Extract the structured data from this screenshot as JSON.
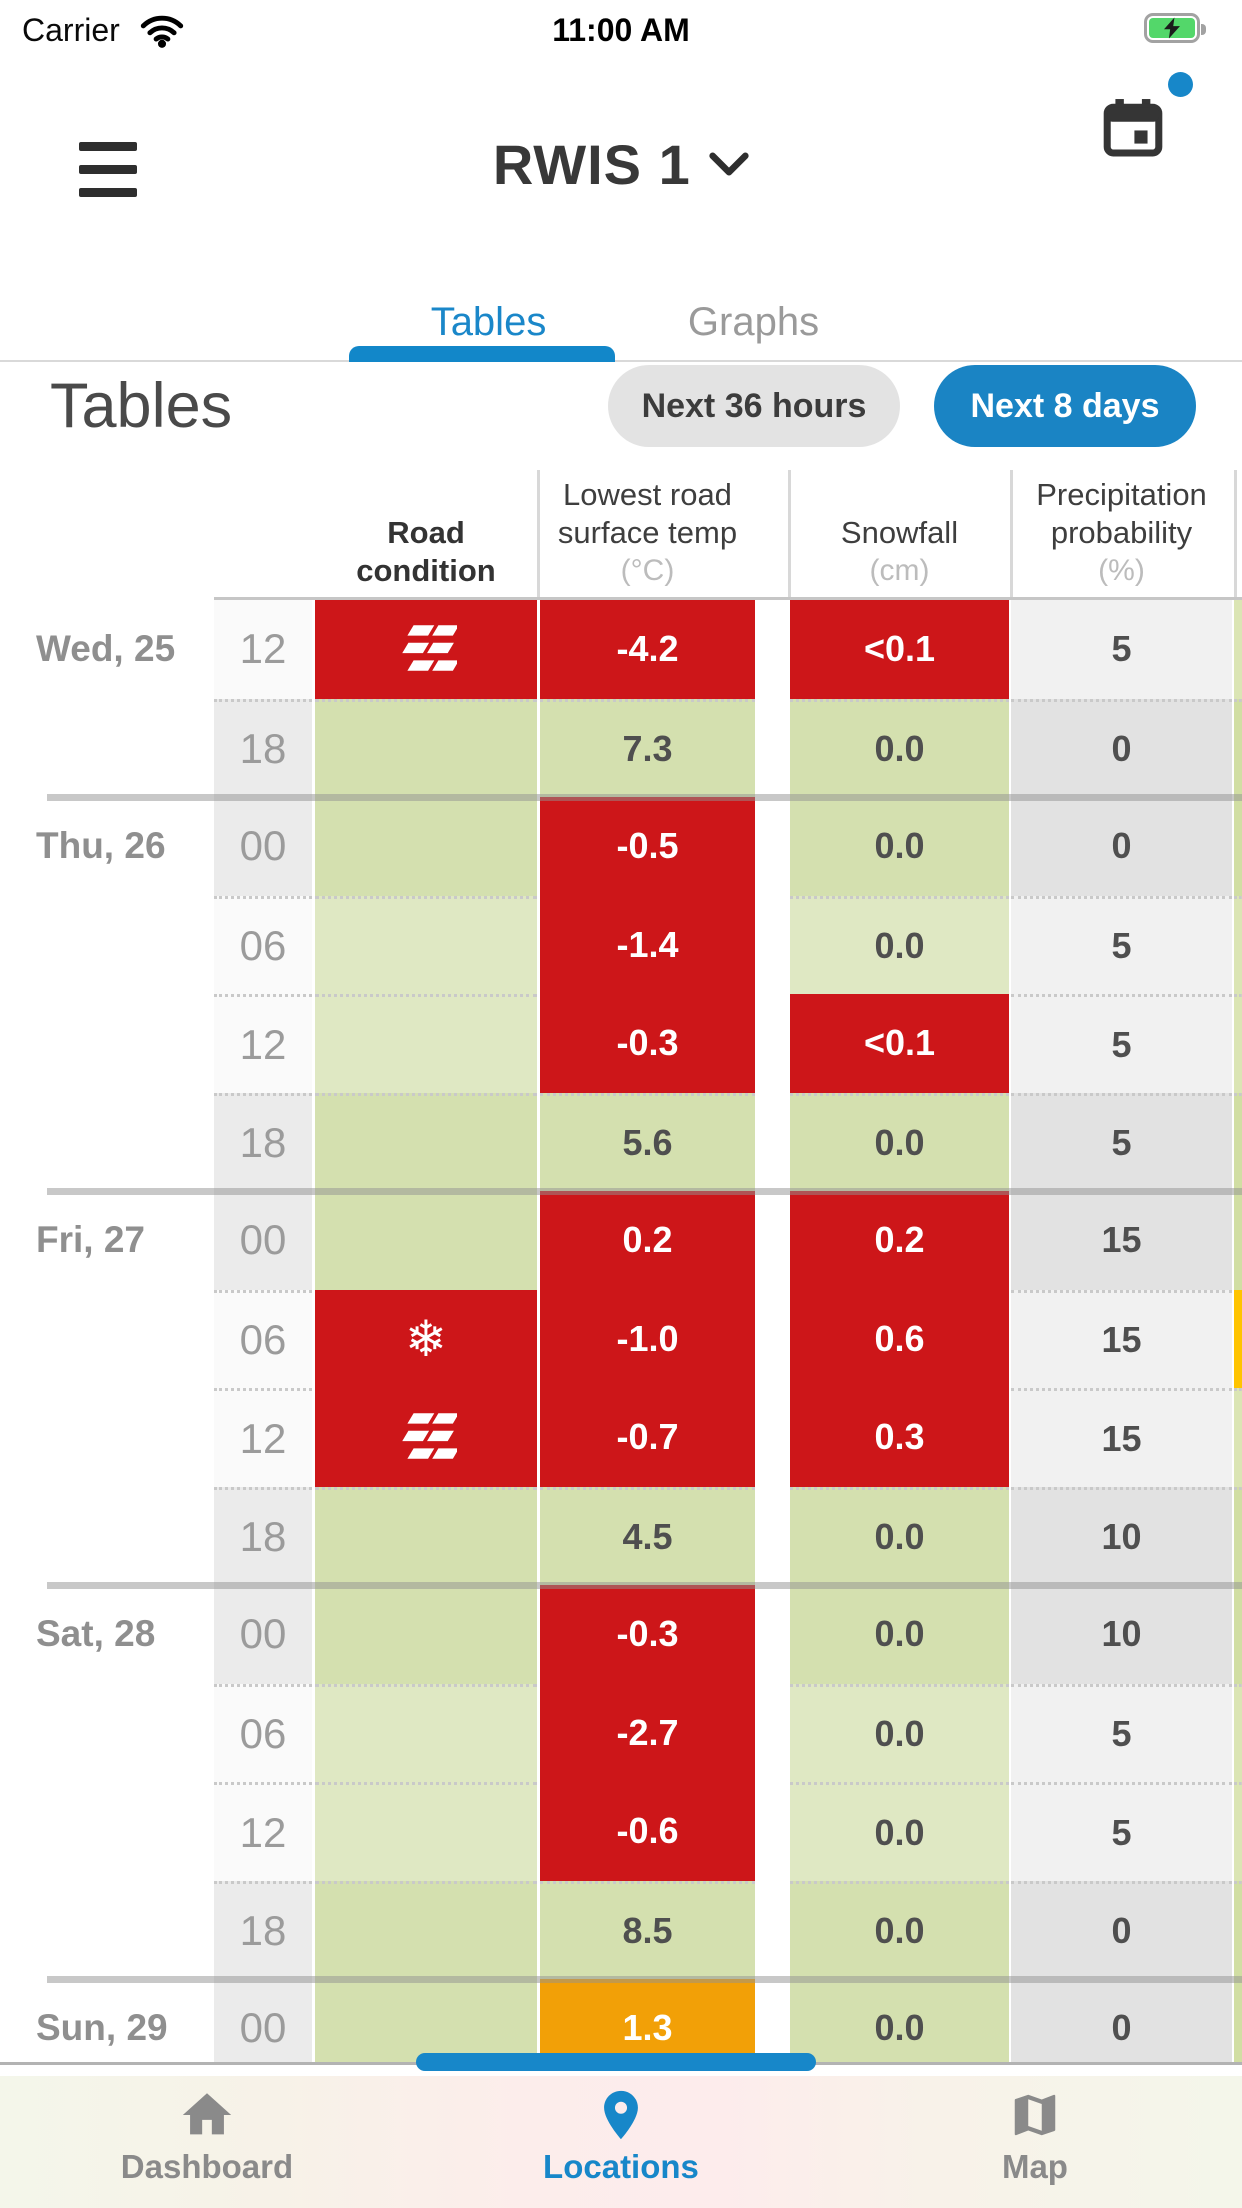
{
  "colors": {
    "accent_blue": "#1787c9",
    "alert_red": "#cd1619",
    "warn_orange": "#f2a007",
    "ok_green": "#dfe8c3",
    "edge_gold": "#ffc400"
  },
  "status_bar": {
    "carrier": "Carrier",
    "time": "11:00 AM",
    "battery": "charging"
  },
  "header": {
    "title": "RWIS 1"
  },
  "tabs": [
    {
      "label": "Tables",
      "active": true
    },
    {
      "label": "Graphs",
      "active": false
    }
  ],
  "section": {
    "title": "Tables",
    "buttons": [
      {
        "label": "Next 36 hours",
        "active": false
      },
      {
        "label": "Next 8 days",
        "active": true
      }
    ]
  },
  "table": {
    "columns": [
      {
        "label": "Road condition",
        "lines": [
          "Road",
          "condition"
        ],
        "unit": ""
      },
      {
        "label": "Lowest road surface temp",
        "lines": [
          "Lowest road",
          "surface temp"
        ],
        "unit": "(°C)"
      },
      {
        "label": "Snowfall",
        "lines": [
          "Snowfall"
        ],
        "unit": "(cm)"
      },
      {
        "label": "Precipitation probability",
        "lines": [
          "Precipitation",
          "probability"
        ],
        "unit": "(%)"
      }
    ],
    "days": [
      {
        "label": "Wed, 25",
        "rows": [
          {
            "time": "12",
            "road": {
              "icon": "slippery",
              "s": "red"
            },
            "temp": {
              "v": "-4.2",
              "s": "red"
            },
            "snow": {
              "v": "<0.1",
              "s": "red"
            },
            "precip": "5",
            "edge": "green"
          },
          {
            "time": "18",
            "road": {
              "icon": null,
              "s": "green"
            },
            "temp": {
              "v": "7.3",
              "s": "green"
            },
            "snow": {
              "v": "0.0",
              "s": "green"
            },
            "precip": "0",
            "edge": "green"
          }
        ]
      },
      {
        "label": "Thu, 26",
        "rows": [
          {
            "time": "00",
            "road": {
              "icon": null,
              "s": "green"
            },
            "temp": {
              "v": "-0.5",
              "s": "red"
            },
            "snow": {
              "v": "0.0",
              "s": "green"
            },
            "precip": "0",
            "edge": "green"
          },
          {
            "time": "06",
            "road": {
              "icon": null,
              "s": "green"
            },
            "temp": {
              "v": "-1.4",
              "s": "red"
            },
            "snow": {
              "v": "0.0",
              "s": "green"
            },
            "precip": "5",
            "edge": "green"
          },
          {
            "time": "12",
            "road": {
              "icon": null,
              "s": "green"
            },
            "temp": {
              "v": "-0.3",
              "s": "red"
            },
            "snow": {
              "v": "<0.1",
              "s": "red"
            },
            "precip": "5",
            "edge": "green"
          },
          {
            "time": "18",
            "road": {
              "icon": null,
              "s": "green"
            },
            "temp": {
              "v": "5.6",
              "s": "green"
            },
            "snow": {
              "v": "0.0",
              "s": "green"
            },
            "precip": "5",
            "edge": "green"
          }
        ]
      },
      {
        "label": "Fri, 27",
        "rows": [
          {
            "time": "00",
            "road": {
              "icon": null,
              "s": "green"
            },
            "temp": {
              "v": "0.2",
              "s": "red"
            },
            "snow": {
              "v": "0.2",
              "s": "red"
            },
            "precip": "15",
            "edge": "green"
          },
          {
            "time": "06",
            "road": {
              "icon": "snowflake",
              "s": "red"
            },
            "temp": {
              "v": "-1.0",
              "s": "red"
            },
            "snow": {
              "v": "0.6",
              "s": "red"
            },
            "precip": "15",
            "edge": "gold"
          },
          {
            "time": "12",
            "road": {
              "icon": "slippery",
              "s": "red"
            },
            "temp": {
              "v": "-0.7",
              "s": "red"
            },
            "snow": {
              "v": "0.3",
              "s": "red"
            },
            "precip": "15",
            "edge": "green"
          },
          {
            "time": "18",
            "road": {
              "icon": null,
              "s": "green"
            },
            "temp": {
              "v": "4.5",
              "s": "green"
            },
            "snow": {
              "v": "0.0",
              "s": "green"
            },
            "precip": "10",
            "edge": "green"
          }
        ]
      },
      {
        "label": "Sat, 28",
        "rows": [
          {
            "time": "00",
            "road": {
              "icon": null,
              "s": "green"
            },
            "temp": {
              "v": "-0.3",
              "s": "red"
            },
            "snow": {
              "v": "0.0",
              "s": "green"
            },
            "precip": "10",
            "edge": "green"
          },
          {
            "time": "06",
            "road": {
              "icon": null,
              "s": "green"
            },
            "temp": {
              "v": "-2.7",
              "s": "red"
            },
            "snow": {
              "v": "0.0",
              "s": "green"
            },
            "precip": "5",
            "edge": "green"
          },
          {
            "time": "12",
            "road": {
              "icon": null,
              "s": "green"
            },
            "temp": {
              "v": "-0.6",
              "s": "red"
            },
            "snow": {
              "v": "0.0",
              "s": "green"
            },
            "precip": "5",
            "edge": "green"
          },
          {
            "time": "18",
            "road": {
              "icon": null,
              "s": "green"
            },
            "temp": {
              "v": "8.5",
              "s": "green"
            },
            "snow": {
              "v": "0.0",
              "s": "green"
            },
            "precip": "0",
            "edge": "green"
          }
        ]
      },
      {
        "label": "Sun, 29",
        "rows": [
          {
            "time": "00",
            "road": {
              "icon": null,
              "s": "green"
            },
            "temp": {
              "v": "1.3",
              "s": "orange"
            },
            "snow": {
              "v": "0.0",
              "s": "green"
            },
            "precip": "0",
            "edge": "green"
          }
        ]
      }
    ]
  },
  "bottom_nav": [
    {
      "label": "Dashboard",
      "icon": "home",
      "active": false
    },
    {
      "label": "Locations",
      "icon": "pin",
      "active": true
    },
    {
      "label": "Map",
      "icon": "map",
      "active": false
    }
  ]
}
